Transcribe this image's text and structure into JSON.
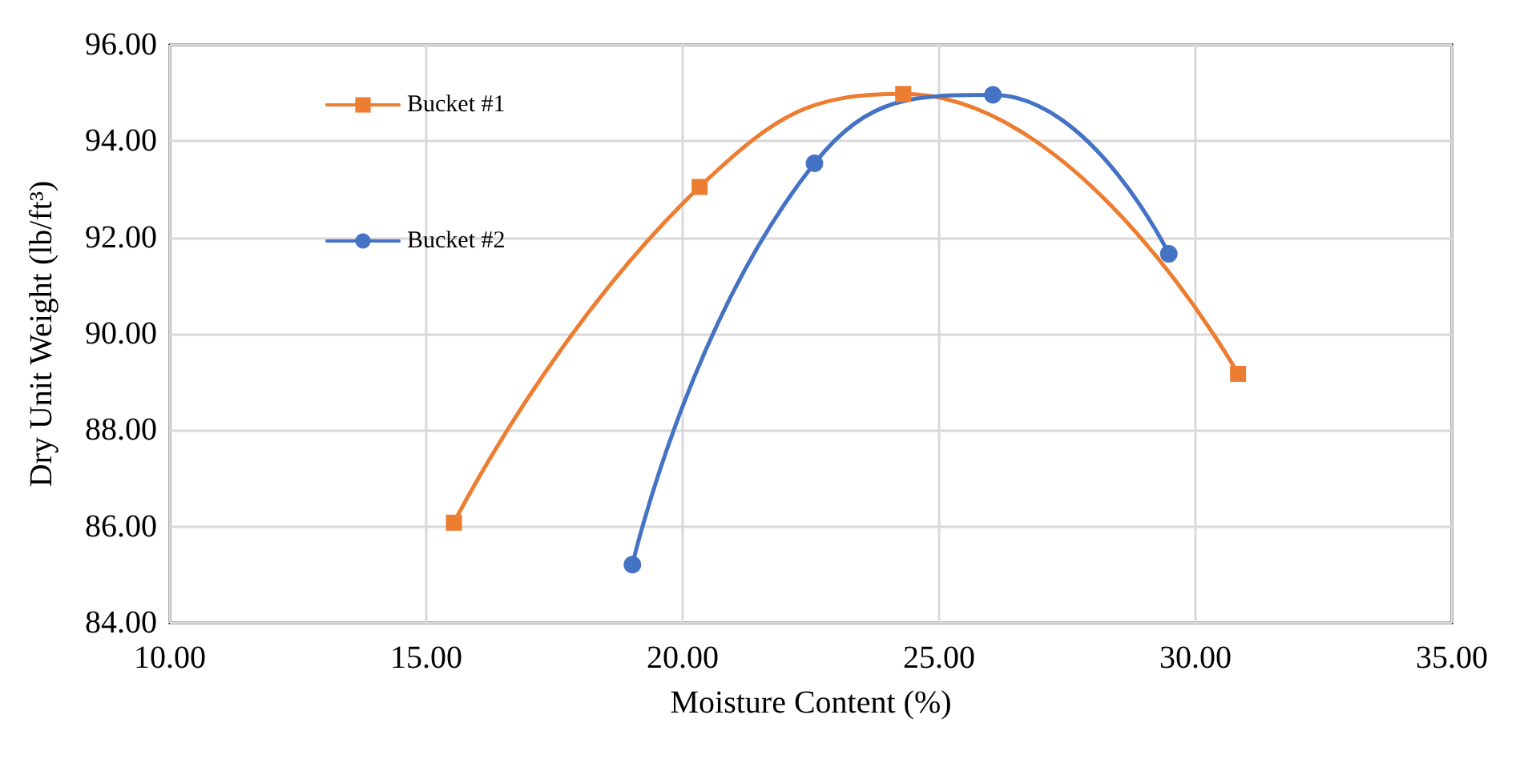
{
  "chart_data": {
    "type": "line",
    "xlabel": "Moisture Content (%)",
    "ylabel": "Dry Unit Weight (lb/ft³)",
    "xlim": [
      10,
      35
    ],
    "xticks": [
      {
        "value": 10,
        "label": "10.00"
      },
      {
        "value": 15,
        "label": "15.00"
      },
      {
        "value": 20,
        "label": "20.00"
      },
      {
        "value": 25,
        "label": "25.00"
      },
      {
        "value": 30,
        "label": "30.00"
      },
      {
        "value": 35,
        "label": "35.00"
      }
    ],
    "ylim": [
      84,
      96
    ],
    "yticks": [
      {
        "value": 84,
        "label": "84.00"
      },
      {
        "value": 86,
        "label": "86.00"
      },
      {
        "value": 88,
        "label": "88.00"
      },
      {
        "value": 90,
        "label": "90.00"
      },
      {
        "value": 92,
        "label": "92.00"
      },
      {
        "value": 94,
        "label": "94.00"
      },
      {
        "value": 96,
        "label": "96.00"
      }
    ],
    "grid": true,
    "legend": "top left",
    "line_style": "solid",
    "series": [
      {
        "name": "Bucket #1",
        "color": "#ed7d31",
        "marker": "square",
        "x": [
          15.54,
          20.33,
          24.3,
          30.83
        ],
        "values": [
          86.08,
          93.05,
          94.98,
          89.17
        ]
      },
      {
        "name": "Bucket #2",
        "color": "#4472c4",
        "marker": "circle",
        "x": [
          19.02,
          22.57,
          26.05,
          29.48
        ],
        "values": [
          85.21,
          93.54,
          94.96,
          91.66
        ]
      }
    ]
  }
}
